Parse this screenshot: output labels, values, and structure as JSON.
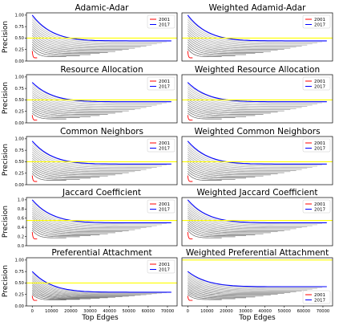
{
  "figure": {
    "y_axis_label": "Precision",
    "x_axis_label": "Top Edges"
  },
  "chart_data": [
    {
      "type": "line",
      "title": "Adamic-Adar",
      "ylabel": "Precision",
      "xlabel": "",
      "ylim": [
        0,
        1.05
      ],
      "xlim": [
        -3000,
        75000
      ],
      "x_ticks": [],
      "y_ticks": [
        "0.00",
        "0.25",
        "0.50",
        "0.75",
        "1.00"
      ],
      "legend": [
        "2001",
        "2017"
      ],
      "legend_position": "top-right",
      "reference_line": 0.5,
      "series": [
        {
          "name": "2001",
          "color": "#ff0000",
          "start_y": 0.22,
          "end_y": 0.07,
          "end_x": 2500
        },
        {
          "name": "2017",
          "color": "#0000ff",
          "start_y": 1.0,
          "end_y": 0.44,
          "end_x": 72000
        }
      ]
    },
    {
      "type": "line",
      "title": "Weighted Adamid-Adar",
      "ylabel": "",
      "xlabel": "",
      "ylim": [
        0,
        1.05
      ],
      "xlim": [
        -3000,
        75000
      ],
      "x_ticks": [],
      "y_ticks": [],
      "legend": [
        "2001",
        "2017"
      ],
      "legend_position": "top-right",
      "reference_line": 0.5,
      "series": [
        {
          "name": "2001",
          "color": "#ff0000",
          "start_y": 0.22,
          "end_y": 0.07,
          "end_x": 2500
        },
        {
          "name": "2017",
          "color": "#0000ff",
          "start_y": 1.0,
          "end_y": 0.44,
          "end_x": 72000
        }
      ]
    },
    {
      "type": "line",
      "title": "Resource Allocation",
      "ylabel": "Precision",
      "xlabel": "",
      "ylim": [
        0,
        1.05
      ],
      "xlim": [
        -3000,
        75000
      ],
      "x_ticks": [],
      "y_ticks": [
        "0.00",
        "0.25",
        "0.50",
        "0.75",
        "1.00"
      ],
      "legend": [
        "2001",
        "2017"
      ],
      "legend_position": "top-right",
      "reference_line": 0.5,
      "series": [
        {
          "name": "2001",
          "color": "#ff0000",
          "start_y": 0.17,
          "end_y": 0.06,
          "end_x": 2500
        },
        {
          "name": "2017",
          "color": "#0000ff",
          "start_y": 0.88,
          "end_y": 0.46,
          "end_x": 72000
        }
      ]
    },
    {
      "type": "line",
      "title": "Weighted Resource Allocation",
      "ylabel": "",
      "xlabel": "",
      "ylim": [
        0,
        1.05
      ],
      "xlim": [
        -3000,
        75000
      ],
      "x_ticks": [],
      "y_ticks": [],
      "legend": [
        "2001",
        "2017"
      ],
      "legend_position": "top-right",
      "reference_line": 0.5,
      "series": [
        {
          "name": "2001",
          "color": "#ff0000",
          "start_y": 0.17,
          "end_y": 0.06,
          "end_x": 2500
        },
        {
          "name": "2017",
          "color": "#0000ff",
          "start_y": 0.88,
          "end_y": 0.46,
          "end_x": 72000
        }
      ]
    },
    {
      "type": "line",
      "title": "Common Neighbors",
      "ylabel": "Precision",
      "xlabel": "",
      "ylim": [
        0,
        1.05
      ],
      "xlim": [
        -3000,
        75000
      ],
      "x_ticks": [],
      "y_ticks": [
        "0.00",
        "0.25",
        "0.50",
        "0.75",
        "1.00"
      ],
      "legend": [
        "2001",
        "2017"
      ],
      "legend_position": "top-right",
      "reference_line": 0.5,
      "series": [
        {
          "name": "2001",
          "color": "#ff0000",
          "start_y": 0.2,
          "end_y": 0.07,
          "end_x": 2500
        },
        {
          "name": "2017",
          "color": "#0000ff",
          "start_y": 0.95,
          "end_y": 0.45,
          "end_x": 72000
        }
      ]
    },
    {
      "type": "line",
      "title": "Weighted Common Neighbors",
      "ylabel": "",
      "xlabel": "",
      "ylim": [
        0,
        1.05
      ],
      "xlim": [
        -3000,
        75000
      ],
      "x_ticks": [],
      "y_ticks": [],
      "legend": [
        "2001",
        "2017"
      ],
      "legend_position": "top-right",
      "reference_line": 0.5,
      "series": [
        {
          "name": "2001",
          "color": "#ff0000",
          "start_y": 0.2,
          "end_y": 0.07,
          "end_x": 2500
        },
        {
          "name": "2017",
          "color": "#0000ff",
          "start_y": 0.95,
          "end_y": 0.45,
          "end_x": 72000
        }
      ]
    },
    {
      "type": "line",
      "title": "Jaccard Coefficient",
      "ylabel": "Precision",
      "xlabel": "",
      "ylim": [
        0,
        1.05
      ],
      "xlim": [
        -3000,
        75000
      ],
      "x_ticks": [],
      "y_ticks": [
        "0.0",
        "0.2",
        "0.4",
        "0.6",
        "0.8",
        "1.0"
      ],
      "legend": [
        "2001",
        "2017"
      ],
      "legend_position": "top-right",
      "reference_line": 0.55,
      "series": [
        {
          "name": "2001",
          "color": "#ff0000",
          "start_y": 0.3,
          "end_y": 0.15,
          "end_x": 2500
        },
        {
          "name": "2017",
          "color": "#0000ff",
          "start_y": 1.0,
          "end_y": 0.5,
          "end_x": 72000
        }
      ]
    },
    {
      "type": "line",
      "title": "Weighted Jaccard Coefficient",
      "ylabel": "",
      "xlabel": "",
      "ylim": [
        0,
        1.05
      ],
      "xlim": [
        -3000,
        75000
      ],
      "x_ticks": [],
      "y_ticks": [],
      "legend": [
        "2001",
        "2017"
      ],
      "legend_position": "top-right",
      "reference_line": 0.55,
      "series": [
        {
          "name": "2001",
          "color": "#ff0000",
          "start_y": 0.3,
          "end_y": 0.15,
          "end_x": 2500
        },
        {
          "name": "2017",
          "color": "#0000ff",
          "start_y": 1.0,
          "end_y": 0.5,
          "end_x": 72000
        }
      ]
    },
    {
      "type": "line",
      "title": "Preferential Attachment",
      "ylabel": "Precision",
      "xlabel": "Top Edges",
      "ylim": [
        0,
        1.05
      ],
      "xlim": [
        -3000,
        75000
      ],
      "x_ticks": [
        "0",
        "10000",
        "20000",
        "30000",
        "40000",
        "50000",
        "60000",
        "70000"
      ],
      "y_ticks": [
        "0.00",
        "0.25",
        "0.50",
        "0.75",
        "1.00"
      ],
      "legend": [
        "2001",
        "2017"
      ],
      "legend_position": "top-right",
      "reference_line": 0.5,
      "series": [
        {
          "name": "2001",
          "color": "#ff0000",
          "start_y": 0.22,
          "end_y": 0.12,
          "end_x": 2500
        },
        {
          "name": "2017",
          "color": "#0000ff",
          "start_y": 0.75,
          "end_y": 0.3,
          "end_x": 72000
        }
      ]
    },
    {
      "type": "line",
      "title": "Weighted Preferential Attachment",
      "ylabel": "",
      "xlabel": "Top Edges",
      "ylim": [
        0,
        1.05
      ],
      "xlim": [
        -3000,
        75000
      ],
      "x_ticks": [
        "0",
        "10000",
        "20000",
        "30000",
        "40000",
        "50000",
        "60000",
        "70000"
      ],
      "y_ticks": [],
      "legend": [
        "2001",
        "2017"
      ],
      "legend_position": "bottom-right",
      "reference_line": 1.0,
      "series": [
        {
          "name": "2001",
          "color": "#ff0000",
          "start_y": 0.22,
          "end_y": 0.12,
          "end_x": 2500
        },
        {
          "name": "2017",
          "color": "#0000ff",
          "start_y": 0.75,
          "end_y": 0.42,
          "end_x": 72000
        }
      ]
    }
  ]
}
